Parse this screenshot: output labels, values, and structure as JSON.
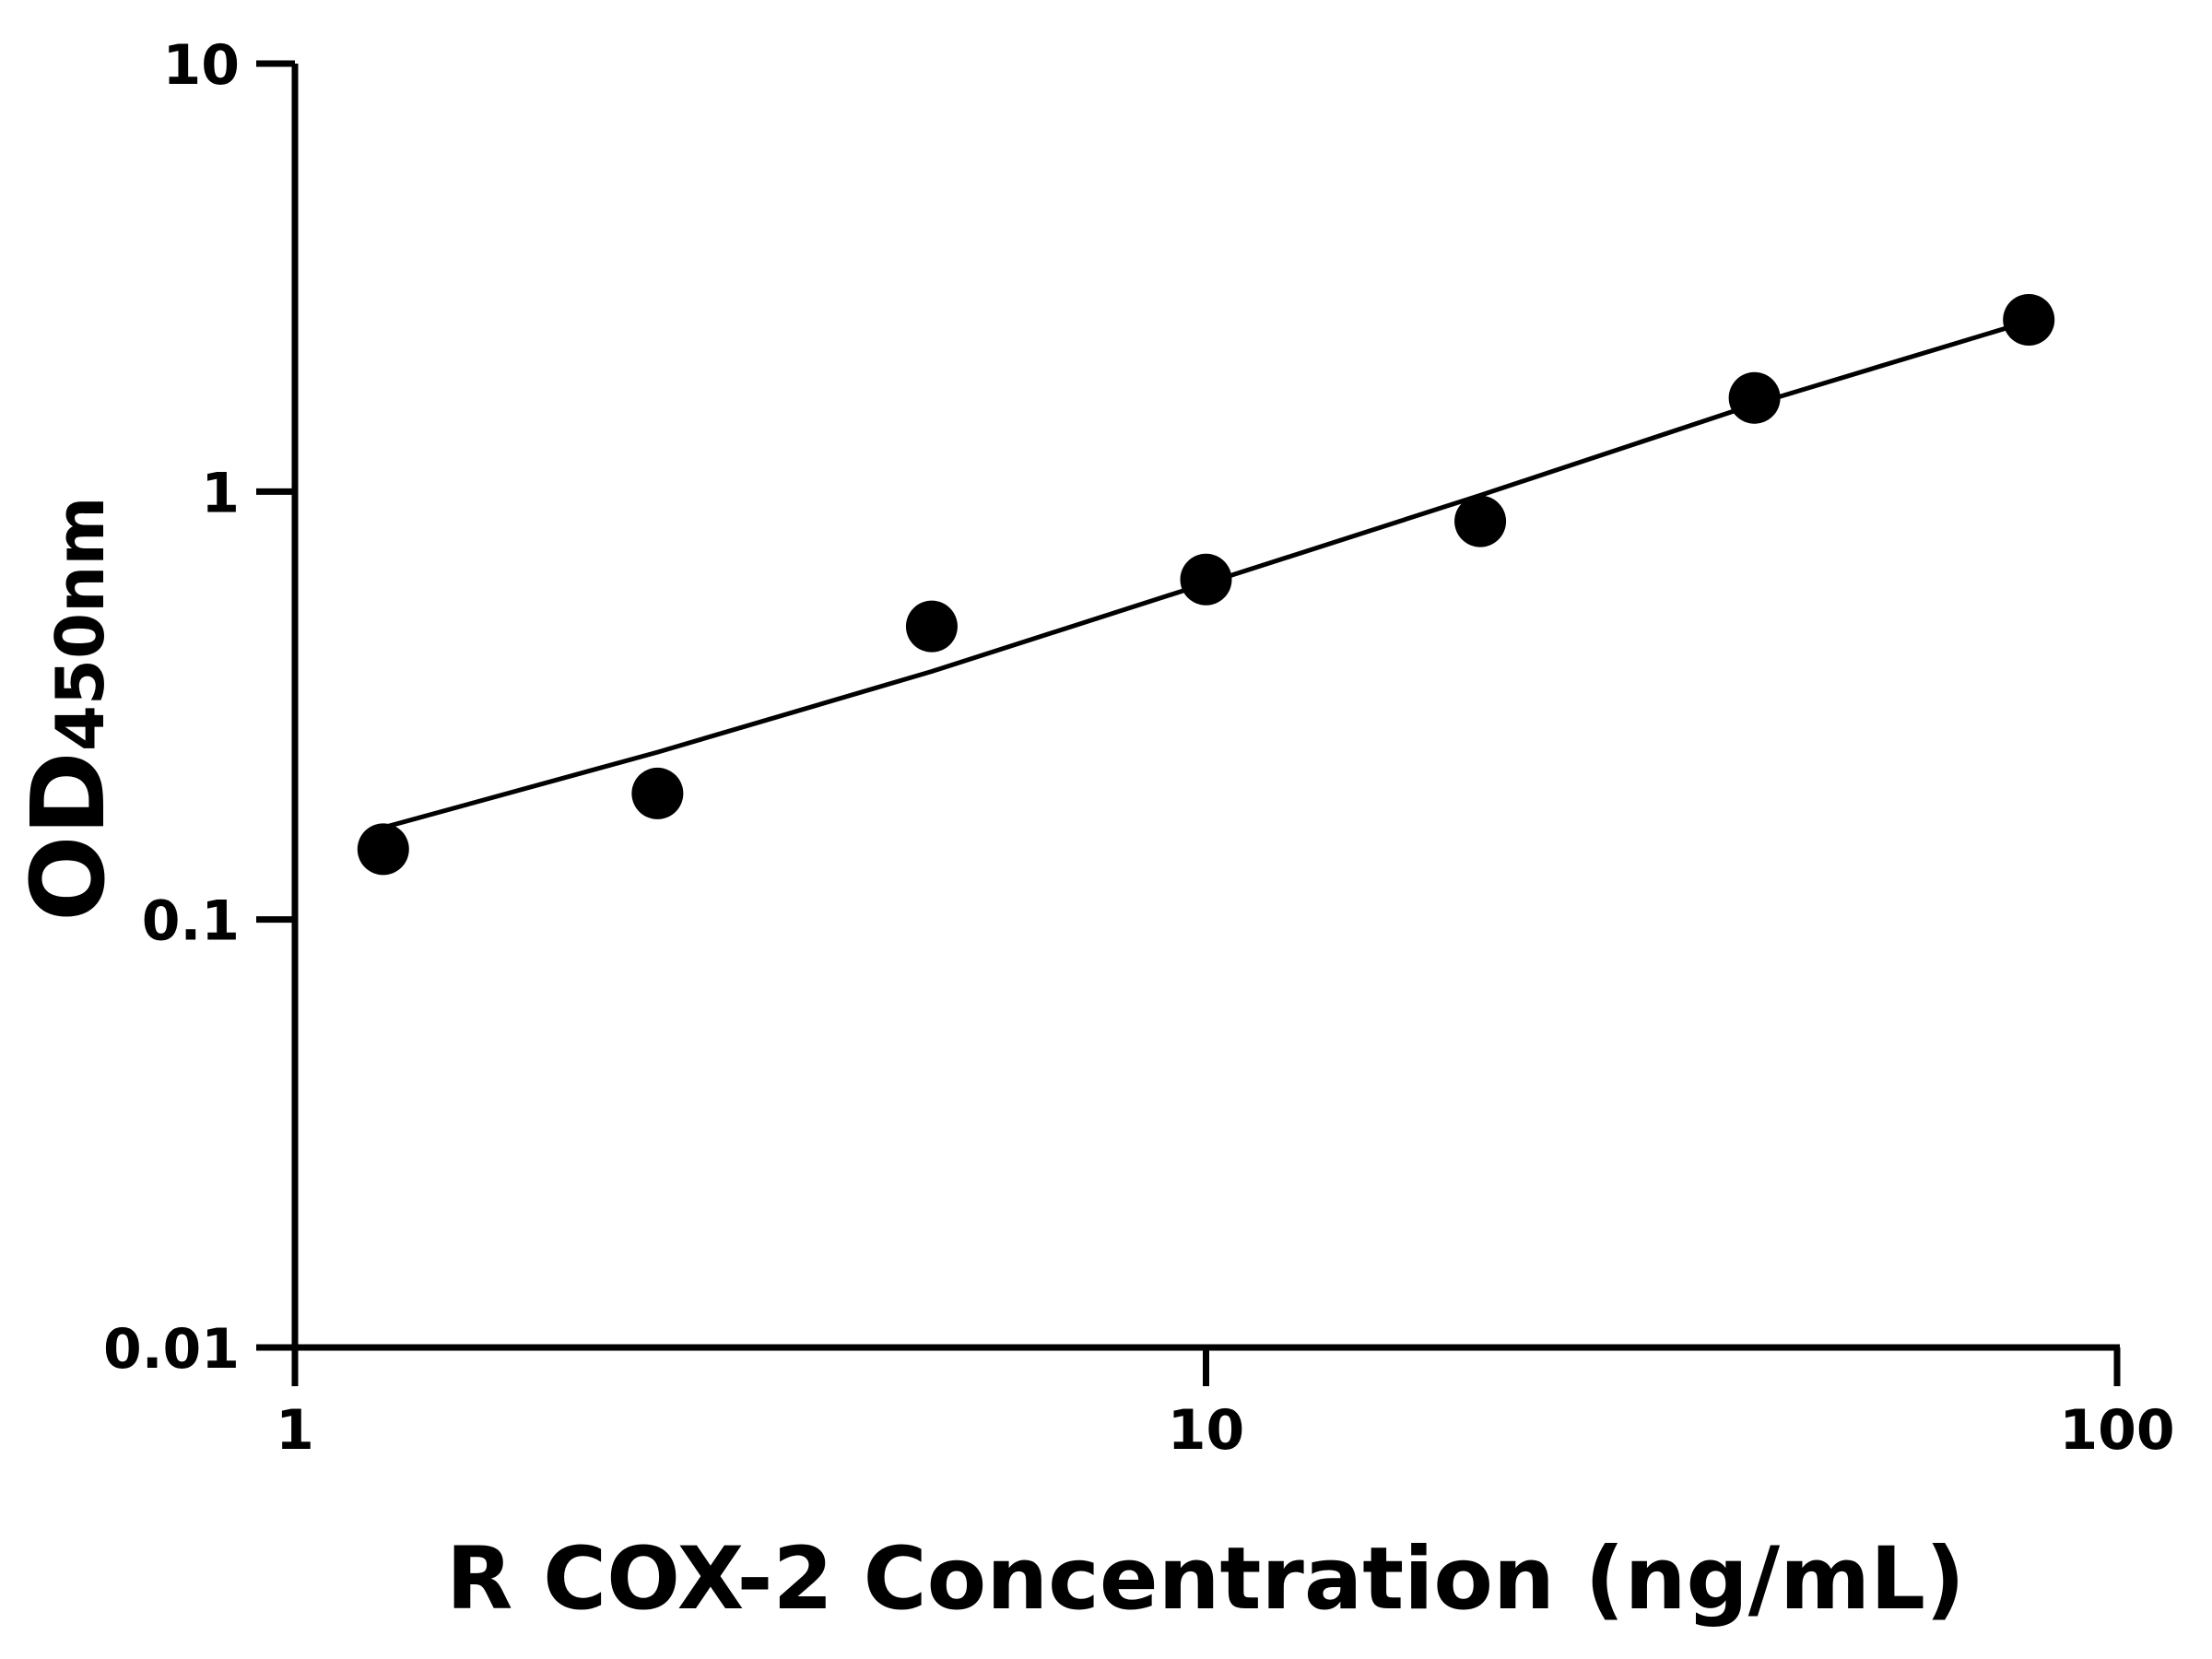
{
  "chart_data": {
    "type": "scatter",
    "title": "",
    "xlabel": "R COX-2 Concentration (ng/mL)",
    "ylabel_main": "OD",
    "ylabel_sub": "450nm",
    "x_scale": "log",
    "y_scale": "log",
    "xlim": [
      1,
      100
    ],
    "ylim": [
      0.01,
      10
    ],
    "x_ticks": [
      1,
      10,
      100
    ],
    "x_tick_labels": [
      "1",
      "10",
      "100"
    ],
    "y_ticks": [
      0.01,
      0.1,
      1,
      10
    ],
    "y_tick_labels": [
      "0.01",
      "0.1",
      "1",
      "10"
    ],
    "grid": false,
    "series": [
      {
        "type": "scatter",
        "x": [
          1.25,
          2.5,
          5,
          10,
          20,
          40,
          80
        ],
        "y": [
          0.146,
          0.197,
          0.484,
          0.623,
          0.852,
          1.655,
          2.52
        ]
      },
      {
        "type": "line",
        "x": [
          1.25,
          2.5,
          5,
          10,
          20,
          40,
          80
        ],
        "y": [
          0.164,
          0.246,
          0.38,
          0.61,
          0.98,
          1.6,
          2.5
        ]
      }
    ],
    "colors": {
      "marker": "#000000",
      "line": "#000000",
      "axis": "#000000"
    }
  }
}
